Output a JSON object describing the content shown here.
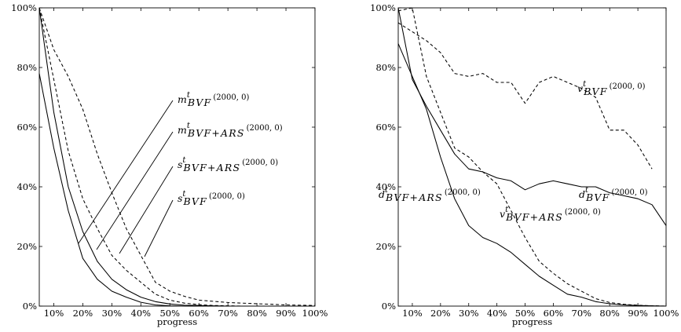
{
  "chart_data": [
    {
      "type": "line",
      "title": "",
      "xlabel": "progress",
      "ylabel": "",
      "xlim": [
        5,
        100
      ],
      "ylim": [
        0,
        100
      ],
      "x_ticks": [
        "10%",
        "20%",
        "30%",
        "40%",
        "50%",
        "60%",
        "70%",
        "80%",
        "90%",
        "100%"
      ],
      "y_ticks": [
        "0%",
        "20%",
        "40%",
        "60%",
        "80%",
        "100%"
      ],
      "grid": false,
      "legend": "none",
      "x": [
        5,
        10,
        15,
        20,
        25,
        30,
        35,
        40,
        45,
        50,
        55,
        60,
        65,
        70,
        75,
        80,
        85,
        90,
        95,
        100
      ],
      "series": [
        {
          "name": "m_t_bvf",
          "style": "dashed",
          "color": "#000000",
          "values": [
            100,
            86,
            77,
            66,
            51,
            38,
            26,
            17,
            8,
            5,
            3.3,
            2,
            1.6,
            1.2,
            1,
            0.8,
            0.6,
            0.4,
            0.3,
            0.2
          ]
        },
        {
          "name": "m_t_bvf_ars",
          "style": "solid",
          "color": "#000000",
          "values": [
            100,
            65,
            40,
            25,
            15,
            9,
            5.5,
            3,
            1.5,
            0.7,
            0.3,
            0.2,
            0.1,
            0,
            0,
            0,
            0,
            0,
            0,
            0
          ]
        },
        {
          "name": "s_t_bvf_ars",
          "style": "solid",
          "color": "#000000",
          "values": [
            78,
            53,
            32,
            16,
            9,
            5,
            3,
            1.3,
            0.4,
            0.1,
            0,
            0,
            0,
            0,
            0,
            0,
            0,
            0,
            0,
            0
          ]
        },
        {
          "name": "s_t_bvf",
          "style": "dashed",
          "color": "#000000",
          "values": [
            100,
            76,
            52,
            36,
            26,
            17,
            12,
            8,
            4,
            2,
            1,
            0.5,
            0.2,
            0.1,
            0,
            0,
            0,
            0,
            0,
            0
          ]
        }
      ],
      "annotations": [
        {
          "base": "m",
          "sup": "t",
          "sub": "BVF",
          "args": "(2000, 0)"
        },
        {
          "base": "m",
          "sup": "t",
          "sub": "BVF+ARS",
          "args": "(2000, 0)"
        },
        {
          "base": "s",
          "sup": "t",
          "sub": "BVF+ARS",
          "args": "(2000, 0)"
        },
        {
          "base": "s",
          "sup": "t",
          "sub": "BVF",
          "args": "(2000, 0)"
        }
      ]
    },
    {
      "type": "line",
      "title": "",
      "xlabel": "progress",
      "ylabel": "",
      "xlim": [
        5,
        100
      ],
      "ylim": [
        0,
        100
      ],
      "x_ticks": [
        "10%",
        "20%",
        "30%",
        "40%",
        "50%",
        "60%",
        "70%",
        "80%",
        "90%",
        "100%"
      ],
      "y_ticks": [
        "0%",
        "20%",
        "40%",
        "60%",
        "80%",
        "100%"
      ],
      "grid": false,
      "legend": "none",
      "x": [
        5,
        10,
        15,
        20,
        25,
        30,
        35,
        40,
        45,
        50,
        55,
        60,
        65,
        70,
        75,
        80,
        85,
        90,
        95,
        100
      ],
      "series": [
        {
          "name": "v_t_bvf",
          "style": "dashed",
          "color": "#000000",
          "values": [
            95,
            92,
            89,
            85,
            78,
            77,
            78,
            75,
            75,
            68,
            75,
            77,
            75,
            73,
            70,
            59,
            59,
            54,
            46,
            null
          ]
        },
        {
          "name": "d_t_bvf",
          "style": "solid",
          "color": "#000000",
          "values": [
            100,
            76,
            67,
            59,
            51,
            46,
            45,
            43,
            42,
            39,
            41,
            42,
            41,
            40,
            40,
            38,
            37,
            36,
            34,
            27
          ]
        },
        {
          "name": "d_t_bvf_ars",
          "style": "solid",
          "color": "#000000",
          "values": [
            88,
            77,
            66,
            50,
            36,
            27,
            23,
            21,
            18,
            14,
            10,
            7,
            4,
            3,
            1.5,
            0.8,
            0.4,
            0.2,
            0.1,
            0
          ]
        },
        {
          "name": "v_t_bvf_ars",
          "style": "dashed",
          "color": "#000000",
          "values": [
            99,
            100,
            77,
            65,
            53,
            50,
            45,
            41,
            32,
            23,
            15,
            11,
            7.5,
            5,
            2.5,
            1.2,
            0.6,
            0.3,
            0.1,
            0
          ]
        }
      ],
      "annotations": [
        {
          "base": "v",
          "sup": "t",
          "sub": "BVF",
          "args": "(2000, 0)"
        },
        {
          "base": "d",
          "sup": "t",
          "sub": "BVF",
          "args": "(2000, 0)"
        },
        {
          "base": "d",
          "sup": "t",
          "sub": "BVF+ARS",
          "args": "(2000, 0)"
        },
        {
          "base": "v",
          "sup": "t",
          "sub": "BVF+ARS",
          "args": "(2000, 0)"
        }
      ]
    }
  ]
}
